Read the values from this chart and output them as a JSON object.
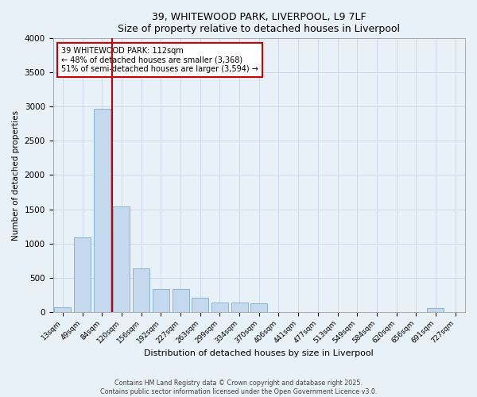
{
  "title_line1": "39, WHITEWOOD PARK, LIVERPOOL, L9 7LF",
  "title_line2": "Size of property relative to detached houses in Liverpool",
  "xlabel": "Distribution of detached houses by size in Liverpool",
  "ylabel": "Number of detached properties",
  "categories": [
    "13sqm",
    "49sqm",
    "84sqm",
    "120sqm",
    "156sqm",
    "192sqm",
    "227sqm",
    "263sqm",
    "299sqm",
    "334sqm",
    "370sqm",
    "406sqm",
    "441sqm",
    "477sqm",
    "513sqm",
    "549sqm",
    "584sqm",
    "620sqm",
    "656sqm",
    "691sqm",
    "727sqm"
  ],
  "values": [
    70,
    1090,
    2970,
    1540,
    640,
    330,
    330,
    200,
    130,
    130,
    120,
    0,
    0,
    0,
    0,
    0,
    0,
    0,
    0,
    50,
    0
  ],
  "bar_color": "#c5d9ee",
  "bar_edge_color": "#7aadd4",
  "grid_color": "#ccdaeb",
  "bg_color": "#e8f0f8",
  "vline_color": "#cc0000",
  "annotation_text": "39 WHITEWOOD PARK: 112sqm\n← 48% of detached houses are smaller (3,368)\n51% of semi-detached houses are larger (3,594) →",
  "annotation_box_color": "#cc0000",
  "annotation_bg": "white",
  "ylim": [
    0,
    4000
  ],
  "yticks": [
    0,
    500,
    1000,
    1500,
    2000,
    2500,
    3000,
    3500,
    4000
  ],
  "footer_line1": "Contains HM Land Registry data © Crown copyright and database right 2025.",
  "footer_line2": "Contains public sector information licensed under the Open Government Licence v3.0."
}
